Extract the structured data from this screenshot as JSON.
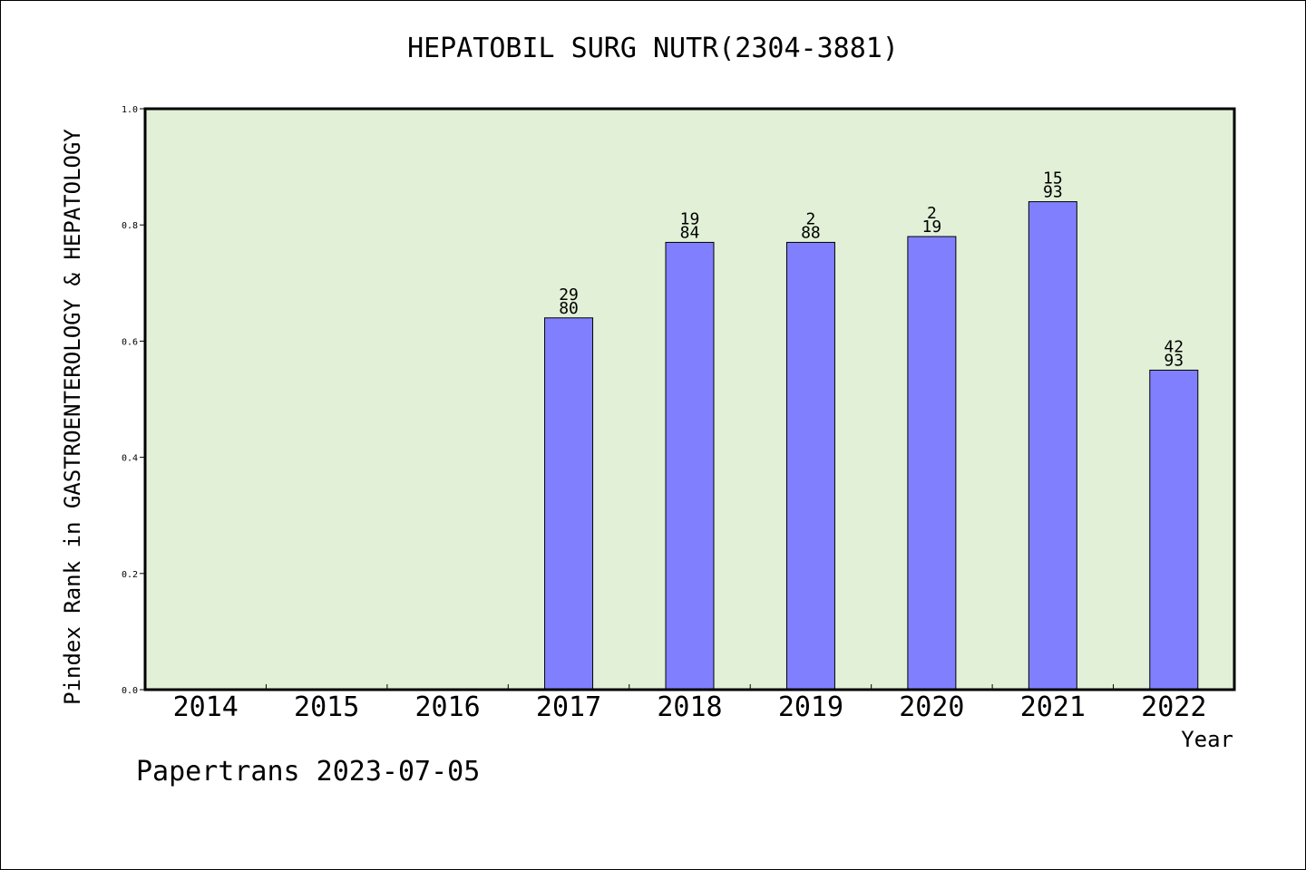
{
  "chart_data": {
    "type": "bar",
    "title": "HEPATOBIL SURG NUTR(2304-3881)",
    "xlabel": "Year",
    "ylabel": "Pindex Rank in GASTROENTEROLOGY & HEPATOLOGY",
    "categories": [
      "2014",
      "2015",
      "2016",
      "2017",
      "2018",
      "2019",
      "2020",
      "2021",
      "2022"
    ],
    "values": [
      null,
      null,
      null,
      0.64,
      0.77,
      0.77,
      0.78,
      0.84,
      0.55
    ],
    "bar_labels": [
      null,
      null,
      null,
      {
        "rank": "29",
        "total": "80"
      },
      {
        "rank": "19",
        "total": "84"
      },
      {
        "rank": "2",
        "total": "88"
      },
      {
        "rank": "2",
        "total": "19"
      },
      {
        "rank": "15",
        "total": "93"
      },
      {
        "rank": "42",
        "total": "93"
      }
    ],
    "ylim": [
      0,
      1.0
    ],
    "yticks": [
      "0.0",
      "0.2",
      "0.4",
      "0.6",
      "0.8",
      "1.0"
    ],
    "grid": false,
    "colors": {
      "plot_background": "#e2f0d7",
      "bar_fill": "#8080ff",
      "bar_stroke": "#000000"
    }
  },
  "footer": {
    "credit": "Papertrans 2023-07-05"
  }
}
